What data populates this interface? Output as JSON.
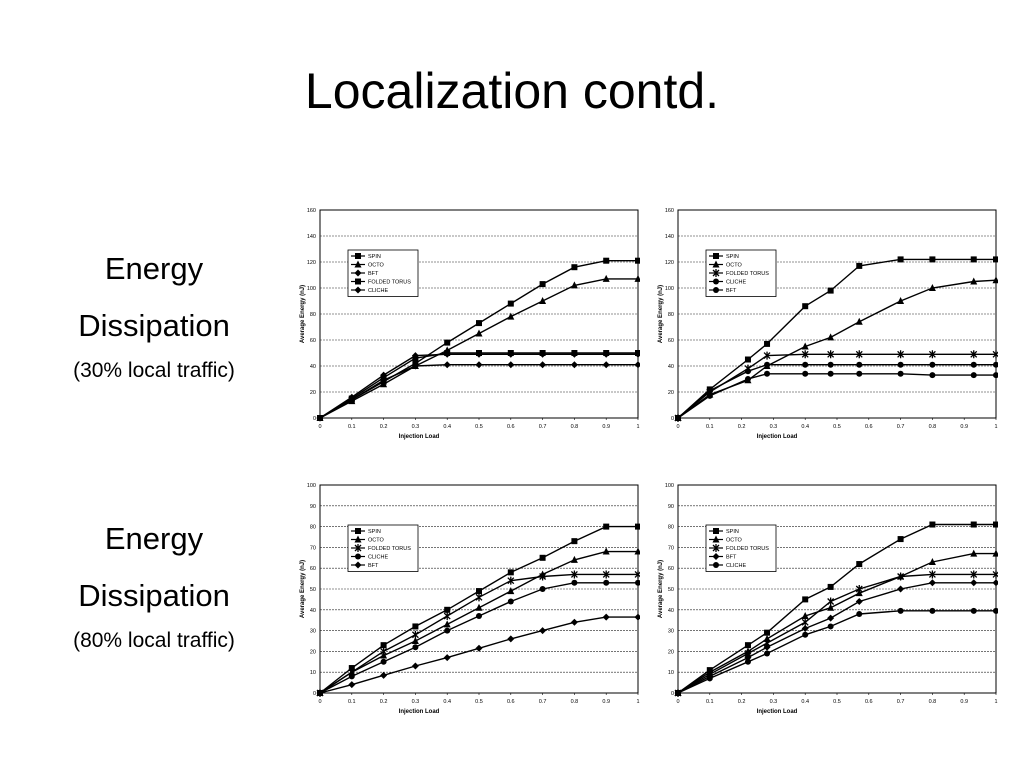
{
  "slide": {
    "title": "Localization contd.",
    "labels": [
      {
        "line1": "Energy",
        "line2": "Dissipation",
        "sub": "(30% local traffic)"
      },
      {
        "line1": "Energy",
        "line2": "Dissipation",
        "sub": "(80% local traffic)"
      }
    ]
  },
  "chart_data": [
    {
      "type": "line",
      "xlabel": "Injection Load",
      "ylabel": "Average Energy (nJ)",
      "xlim": [
        0,
        1
      ],
      "ylim": [
        0,
        160
      ],
      "xticks": [
        "0",
        "0.1",
        "0.2",
        "0.3",
        "0.4",
        "0.5",
        "0.6",
        "0.7",
        "0.8",
        "0.9",
        "1"
      ],
      "yticks": [
        "0",
        "20",
        "40",
        "60",
        "80",
        "100",
        "120",
        "140",
        "160"
      ],
      "grid": "horizontal",
      "legend_position": "upper-left",
      "series": [
        {
          "name": "SPIN",
          "marker": "square",
          "x": [
            0,
            0.1,
            0.2,
            0.3,
            0.4,
            0.5,
            0.6,
            0.7,
            0.8,
            0.9,
            1
          ],
          "y": [
            0,
            14,
            28,
            42,
            58,
            73,
            88,
            103,
            116,
            121,
            121
          ]
        },
        {
          "name": "OCTO",
          "marker": "triangle",
          "x": [
            0,
            0.1,
            0.2,
            0.3,
            0.4,
            0.5,
            0.6,
            0.7,
            0.8,
            0.9,
            1
          ],
          "y": [
            0,
            13,
            26,
            40,
            52,
            65,
            78,
            90,
            102,
            107,
            107
          ]
        },
        {
          "name": "BFT",
          "marker": "diamond",
          "x": [
            0,
            0.1,
            0.2,
            0.3,
            0.4,
            0.5,
            0.6,
            0.7,
            0.8,
            0.9,
            1
          ],
          "y": [
            0,
            16,
            33,
            48,
            49,
            49,
            49,
            49,
            49,
            49,
            49
          ]
        },
        {
          "name": "FOLDED TORUS",
          "marker": "square",
          "x": [
            0,
            0.1,
            0.2,
            0.3,
            0.4,
            0.5,
            0.6,
            0.7,
            0.8,
            0.9,
            1
          ],
          "y": [
            0,
            15,
            31,
            46,
            50,
            50,
            50,
            50,
            50,
            50,
            50
          ]
        },
        {
          "name": "CLICHE",
          "marker": "diamond",
          "x": [
            0,
            0.1,
            0.2,
            0.3,
            0.4,
            0.5,
            0.6,
            0.7,
            0.8,
            0.9,
            1
          ],
          "y": [
            0,
            14,
            29,
            40,
            41,
            41,
            41,
            41,
            41,
            41,
            41
          ]
        }
      ]
    },
    {
      "type": "line",
      "xlabel": "Injection Load",
      "ylabel": "Average Energy (nJ)",
      "xlim": [
        0,
        1
      ],
      "ylim": [
        0,
        160
      ],
      "xticks": [
        "0",
        "0.1",
        "0.2",
        "0.3",
        "0.4",
        "0.5",
        "0.6",
        "0.7",
        "0.8",
        "0.9",
        "1"
      ],
      "yticks": [
        "0",
        "20",
        "40",
        "60",
        "80",
        "100",
        "120",
        "140",
        "160"
      ],
      "grid": "horizontal",
      "legend_position": "upper-left",
      "series": [
        {
          "name": "SPIN",
          "marker": "square",
          "x": [
            0,
            0.1,
            0.22,
            0.28,
            0.4,
            0.48,
            0.57,
            0.7,
            0.8,
            0.93,
            1
          ],
          "y": [
            0,
            22,
            45,
            57,
            86,
            98,
            117,
            122,
            122,
            122,
            122
          ]
        },
        {
          "name": "OCTO",
          "marker": "triangle",
          "x": [
            0,
            0.1,
            0.22,
            0.28,
            0.4,
            0.48,
            0.57,
            0.7,
            0.8,
            0.93,
            1
          ],
          "y": [
            0,
            18,
            29,
            40,
            55,
            62,
            74,
            90,
            100,
            105,
            106
          ]
        },
        {
          "name": "FOLDED TORUS",
          "marker": "star",
          "x": [
            0,
            0.1,
            0.22,
            0.28,
            0.4,
            0.48,
            0.57,
            0.7,
            0.8,
            0.93,
            1
          ],
          "y": [
            0,
            20,
            38,
            48,
            49,
            49,
            49,
            49,
            49,
            49,
            49
          ]
        },
        {
          "name": "CLICHE",
          "marker": "circle",
          "x": [
            0,
            0.1,
            0.22,
            0.28,
            0.4,
            0.48,
            0.57,
            0.7,
            0.8,
            0.93,
            1
          ],
          "y": [
            0,
            21,
            36,
            41,
            41,
            41,
            41,
            41,
            41,
            41,
            41
          ]
        },
        {
          "name": "BFT",
          "marker": "circle",
          "x": [
            0,
            0.1,
            0.22,
            0.28,
            0.4,
            0.48,
            0.57,
            0.7,
            0.8,
            0.93,
            1
          ],
          "y": [
            0,
            17,
            30,
            34,
            34,
            34,
            34,
            34,
            33,
            33,
            33
          ]
        }
      ]
    },
    {
      "type": "line",
      "xlabel": "Injection Load",
      "ylabel": "Average Energy (nJ)",
      "xlim": [
        0,
        1
      ],
      "ylim": [
        0,
        100
      ],
      "xticks": [
        "0",
        "0.1",
        "0.2",
        "0.3",
        "0.4",
        "0.5",
        "0.6",
        "0.7",
        "0.8",
        "0.9",
        "1"
      ],
      "yticks": [
        "0",
        "10",
        "20",
        "30",
        "40",
        "50",
        "60",
        "70",
        "80",
        "90",
        "100"
      ],
      "grid": "horizontal",
      "legend_position": "upper-left",
      "series": [
        {
          "name": "SPIN",
          "marker": "square",
          "x": [
            0,
            0.1,
            0.2,
            0.3,
            0.4,
            0.5,
            0.6,
            0.7,
            0.8,
            0.9,
            1
          ],
          "y": [
            0,
            12,
            23,
            32,
            40,
            49,
            58,
            65,
            73,
            80,
            80
          ]
        },
        {
          "name": "OCTO",
          "marker": "triangle",
          "x": [
            0,
            0.1,
            0.2,
            0.3,
            0.4,
            0.5,
            0.6,
            0.7,
            0.8,
            0.9,
            1
          ],
          "y": [
            0,
            10,
            18,
            25,
            33,
            41,
            49,
            57,
            64,
            68,
            68
          ]
        },
        {
          "name": "FOLDED TORUS",
          "marker": "star",
          "x": [
            0,
            0.1,
            0.2,
            0.3,
            0.4,
            0.5,
            0.6,
            0.7,
            0.8,
            0.9,
            1
          ],
          "y": [
            0,
            10,
            20,
            28,
            37,
            46,
            54,
            56,
            57,
            57,
            57
          ]
        },
        {
          "name": "CLICHE",
          "marker": "circle",
          "x": [
            0,
            0.1,
            0.2,
            0.3,
            0.4,
            0.5,
            0.6,
            0.7,
            0.8,
            0.9,
            1
          ],
          "y": [
            0,
            8,
            15,
            22,
            30,
            37,
            44,
            50,
            53,
            53,
            53
          ]
        },
        {
          "name": "BFT",
          "marker": "diamond",
          "x": [
            0,
            0.1,
            0.2,
            0.3,
            0.4,
            0.5,
            0.6,
            0.7,
            0.8,
            0.9,
            1
          ],
          "y": [
            0,
            4,
            8.5,
            13,
            17,
            21.5,
            26,
            30,
            34,
            36.5,
            36.5
          ]
        }
      ]
    },
    {
      "type": "line",
      "xlabel": "Injection Load",
      "ylabel": "Average Energy (nJ)",
      "xlim": [
        0,
        1
      ],
      "ylim": [
        0,
        100
      ],
      "xticks": [
        "0",
        "0.1",
        "0.2",
        "0.3",
        "0.4",
        "0.5",
        "0.6",
        "0.7",
        "0.8",
        "0.9",
        "1"
      ],
      "yticks": [
        "0",
        "10",
        "20",
        "30",
        "40",
        "50",
        "60",
        "70",
        "80",
        "90",
        "100"
      ],
      "grid": "horizontal",
      "legend_position": "upper-left",
      "series": [
        {
          "name": "SPIN",
          "marker": "square",
          "x": [
            0,
            0.1,
            0.22,
            0.28,
            0.4,
            0.48,
            0.57,
            0.7,
            0.8,
            0.93,
            1
          ],
          "y": [
            0,
            11,
            23,
            29,
            45,
            51,
            62,
            74,
            81,
            81,
            81
          ]
        },
        {
          "name": "OCTO",
          "marker": "triangle",
          "x": [
            0,
            0.1,
            0.22,
            0.28,
            0.4,
            0.48,
            0.57,
            0.7,
            0.8,
            0.93,
            1
          ],
          "y": [
            0,
            10,
            20,
            26,
            37,
            41,
            48,
            56,
            63,
            67,
            67
          ]
        },
        {
          "name": "FOLDED TORUS",
          "marker": "star",
          "x": [
            0,
            0.1,
            0.22,
            0.28,
            0.4,
            0.48,
            0.57,
            0.7,
            0.8,
            0.93,
            1
          ],
          "y": [
            0,
            9,
            19,
            24,
            34,
            44,
            50,
            56,
            57,
            57,
            57
          ]
        },
        {
          "name": "BFT",
          "marker": "diamond",
          "x": [
            0,
            0.1,
            0.22,
            0.28,
            0.4,
            0.48,
            0.57,
            0.7,
            0.8,
            0.93,
            1
          ],
          "y": [
            0,
            8,
            17,
            22,
            31,
            36,
            44,
            50,
            53,
            53,
            53
          ]
        },
        {
          "name": "CLICHE",
          "marker": "circle",
          "x": [
            0,
            0.1,
            0.22,
            0.28,
            0.4,
            0.48,
            0.57,
            0.7,
            0.8,
            0.93,
            1
          ],
          "y": [
            0,
            7,
            15,
            19,
            28,
            32,
            38,
            39.5,
            39.5,
            39.5,
            39.5
          ]
        }
      ]
    }
  ]
}
